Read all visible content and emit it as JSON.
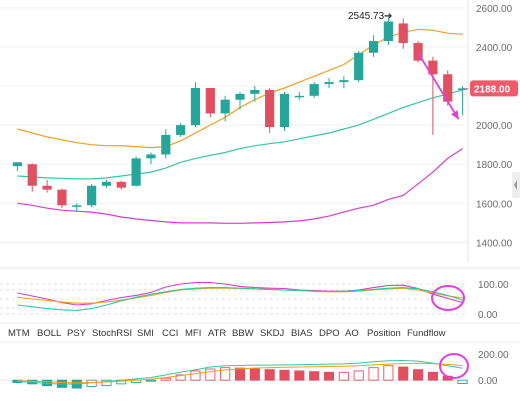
{
  "chart_data": [
    {
      "type": "candlestick",
      "name_role": "main-price",
      "y_ticks": [
        "2600.00",
        "2400.00",
        "2200.00",
        "2000.00",
        "1800.00",
        "1600.00",
        "1400.00"
      ],
      "ylim": [
        1300,
        2640
      ],
      "last_price_label": "2188.00",
      "last_price": 2188,
      "peak_label": "2545.73",
      "peak_value": 2545.73,
      "peak_arrow": "➔",
      "grid": true,
      "colors": {
        "up": "#26a69a",
        "down": "#e05060",
        "last_price_bg": "#f05a6a",
        "ma_orange": "#f0a020",
        "ma_teal": "#3ac4a6",
        "ma_pink": "#d040c8",
        "annotation": "#e040e0"
      },
      "candles": [
        {
          "o": 1790,
          "h": 1810,
          "l": 1765,
          "c": 1810
        },
        {
          "o": 1800,
          "h": 1805,
          "l": 1660,
          "c": 1690
        },
        {
          "o": 1690,
          "h": 1720,
          "l": 1655,
          "c": 1670
        },
        {
          "o": 1670,
          "h": 1675,
          "l": 1575,
          "c": 1590
        },
        {
          "o": 1590,
          "h": 1600,
          "l": 1560,
          "c": 1590
        },
        {
          "o": 1590,
          "h": 1700,
          "l": 1580,
          "c": 1690
        },
        {
          "o": 1690,
          "h": 1720,
          "l": 1680,
          "c": 1710
        },
        {
          "o": 1710,
          "h": 1715,
          "l": 1670,
          "c": 1680
        },
        {
          "o": 1690,
          "h": 1840,
          "l": 1685,
          "c": 1830
        },
        {
          "o": 1830,
          "h": 1860,
          "l": 1800,
          "c": 1850
        },
        {
          "o": 1850,
          "h": 1980,
          "l": 1830,
          "c": 1950
        },
        {
          "o": 1950,
          "h": 2010,
          "l": 1940,
          "c": 2000
        },
        {
          "o": 2000,
          "h": 2220,
          "l": 1990,
          "c": 2190
        },
        {
          "o": 2190,
          "h": 2180,
          "l": 2040,
          "c": 2060
        },
        {
          "o": 2060,
          "h": 2150,
          "l": 2020,
          "c": 2130
        },
        {
          "o": 2130,
          "h": 2170,
          "l": 2080,
          "c": 2160
        },
        {
          "o": 2160,
          "h": 2200,
          "l": 2120,
          "c": 2180
        },
        {
          "o": 2180,
          "h": 2190,
          "l": 1960,
          "c": 1990
        },
        {
          "o": 1990,
          "h": 2170,
          "l": 1970,
          "c": 2160
        },
        {
          "o": 2150,
          "h": 2170,
          "l": 2130,
          "c": 2150
        },
        {
          "o": 2150,
          "h": 2220,
          "l": 2140,
          "c": 2210
        },
        {
          "o": 2210,
          "h": 2240,
          "l": 2190,
          "c": 2220
        },
        {
          "o": 2220,
          "h": 2250,
          "l": 2190,
          "c": 2230
        },
        {
          "o": 2230,
          "h": 2380,
          "l": 2220,
          "c": 2370
        },
        {
          "o": 2370,
          "h": 2460,
          "l": 2350,
          "c": 2430
        },
        {
          "o": 2430,
          "h": 2550,
          "l": 2410,
          "c": 2530
        },
        {
          "o": 2520,
          "h": 2545,
          "l": 2390,
          "c": 2420
        },
        {
          "o": 2420,
          "h": 2430,
          "l": 2320,
          "c": 2330
        },
        {
          "o": 2330,
          "h": 2350,
          "l": 1950,
          "c": 2260
        },
        {
          "o": 2260,
          "h": 2280,
          "l": 2100,
          "c": 2120
        },
        {
          "o": 2180,
          "h": 2200,
          "l": 2050,
          "c": 2188
        }
      ],
      "ma_orange": [
        1980,
        1960,
        1940,
        1925,
        1910,
        1900,
        1895,
        1895,
        1890,
        1885,
        1890,
        1920,
        1960,
        2000,
        2040,
        2090,
        2130,
        2165,
        2190,
        2220,
        2250,
        2280,
        2310,
        2360,
        2410,
        2450,
        2475,
        2490,
        2485,
        2470,
        2465
      ],
      "ma_teal": [
        1740,
        1735,
        1730,
        1728,
        1725,
        1725,
        1730,
        1740,
        1750,
        1760,
        1780,
        1810,
        1830,
        1845,
        1860,
        1880,
        1895,
        1905,
        1915,
        1930,
        1945,
        1960,
        1980,
        2000,
        2030,
        2060,
        2090,
        2115,
        2140,
        2160,
        2180
      ],
      "ma_pink": [
        1600,
        1590,
        1575,
        1565,
        1560,
        1555,
        1545,
        1530,
        1520,
        1512,
        1505,
        1500,
        1500,
        1500,
        1498,
        1498,
        1500,
        1502,
        1505,
        1510,
        1520,
        1535,
        1555,
        1575,
        1590,
        1620,
        1640,
        1700,
        1760,
        1830,
        1880
      ],
      "arrow": {
        "from_x": 27,
        "from_y": 2370,
        "to_x": 30,
        "to_y": 2030
      }
    },
    {
      "type": "line",
      "name_role": "oscillator",
      "y_ticks": [
        "100.00",
        "0.00"
      ],
      "ylim": [
        -20,
        140
      ],
      "series": [
        {
          "values": [
            70,
            60,
            50,
            38,
            30,
            34,
            45,
            55,
            62,
            72,
            90,
            100,
            105,
            105,
            100,
            92,
            88,
            86,
            85,
            80,
            78,
            76,
            76,
            80,
            88,
            95,
            96,
            85,
            66,
            52,
            38
          ],
          "color": "#d040c8"
        },
        {
          "values": [
            56,
            50,
            45,
            40,
            36,
            36,
            40,
            46,
            54,
            62,
            72,
            80,
            84,
            86,
            86,
            85,
            84,
            82,
            80,
            78,
            76,
            74,
            74,
            76,
            80,
            84,
            86,
            80,
            70,
            60,
            54
          ],
          "color": "#f0a020"
        },
        {
          "values": [
            30,
            24,
            18,
            14,
            12,
            18,
            30,
            44,
            56,
            66,
            74,
            82,
            86,
            88,
            88,
            86,
            84,
            82,
            80,
            78,
            76,
            75,
            76,
            78,
            82,
            86,
            88,
            84,
            74,
            62,
            46
          ],
          "color": "#3ac4a6"
        }
      ]
    },
    {
      "type": "bar",
      "name_role": "macd",
      "y_ticks": [
        "200.00",
        "0.00"
      ],
      "ylim": [
        -90,
        260
      ],
      "values": [
        -18,
        -28,
        -42,
        -55,
        -60,
        -48,
        -40,
        -28,
        -18,
        -5,
        15,
        40,
        70,
        85,
        95,
        92,
        90,
        80,
        75,
        70,
        65,
        60,
        60,
        70,
        95,
        110,
        100,
        80,
        60,
        30,
        -25
      ],
      "dif": [
        -10,
        -15,
        -25,
        -30,
        -28,
        -20,
        -10,
        0,
        10,
        20,
        40,
        60,
        80,
        100,
        110,
        112,
        115,
        115,
        116,
        118,
        120,
        122,
        124,
        130,
        140,
        148,
        150,
        145,
        130,
        110,
        90
      ],
      "dea": [
        -5,
        -8,
        -12,
        -18,
        -20,
        -18,
        -14,
        -8,
        0,
        8,
        20,
        35,
        50,
        65,
        78,
        86,
        92,
        96,
        98,
        100,
        102,
        104,
        106,
        110,
        116,
        122,
        126,
        128,
        126,
        120,
        110
      ]
    }
  ],
  "indicator_tabs": [
    "MTM",
    "BOLL",
    "PSY",
    "StochRSI",
    "SMI",
    "CCI",
    "MFI",
    "ATR",
    "BBW",
    "SKDJ",
    "BIAS",
    "DPO",
    "AO",
    "Position",
    "Fundflow"
  ]
}
